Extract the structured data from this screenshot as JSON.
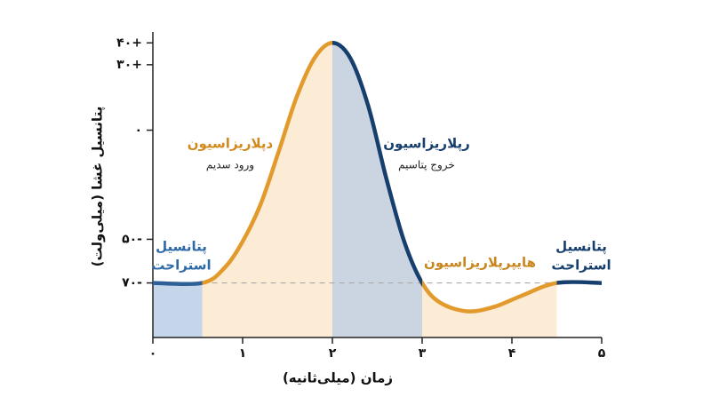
{
  "chart_data": {
    "type": "line",
    "x_label": "زمان (میلی‌ثانیه)",
    "y_label": "پتانسیل غشا (میلی‌ولت)",
    "xlim": [
      0,
      5
    ],
    "xticks": [
      {
        "value": 0,
        "label": "۰"
      },
      {
        "value": 1,
        "label": "۱"
      },
      {
        "value": 2,
        "label": "۲"
      },
      {
        "value": 3,
        "label": "۳"
      },
      {
        "value": 4,
        "label": "۴"
      },
      {
        "value": 5,
        "label": "۵"
      }
    ],
    "ylim": [
      -95,
      45
    ],
    "yticks": [
      {
        "value": 40,
        "label": "۴۰+"
      },
      {
        "value": 30,
        "label": "۳۰+"
      },
      {
        "value": 0,
        "label": "۰"
      },
      {
        "value": -50,
        "label": "۵۰-"
      },
      {
        "value": -70,
        "label": "۷۰-"
      }
    ],
    "baseline": -70,
    "series": [
      {
        "x": [
          0,
          0.55,
          0.8,
          1.0,
          1.2,
          1.4,
          1.6,
          1.8,
          2.0,
          2.2,
          2.4,
          2.6,
          2.8,
          3.0,
          3.2,
          3.5,
          3.8,
          4.1,
          4.5,
          5
        ],
        "values": [
          -70,
          -70,
          -63,
          -51,
          -34,
          -10,
          15,
          33,
          40,
          33,
          11,
          -22,
          -51,
          -70,
          -79,
          -83,
          -81,
          -76,
          -70,
          -70
        ]
      }
    ],
    "regions": [
      {
        "label": [
          "پتانسیل",
          "استراحت"
        ],
        "from": 0,
        "to": 0.55,
        "line_color": "#2e5f96",
        "fill_color": "#c5d5ea",
        "label_color": "#2e6aa8"
      },
      {
        "label": [
          "دپلاریزاسیون"
        ],
        "sublabel": "ورود سدیم",
        "from": 0.55,
        "to": 2,
        "line_color": "#e39a2d",
        "fill_color": "#fcecd6",
        "label_color": "#d08a1e"
      },
      {
        "label": [
          "رپلاریزاسیون"
        ],
        "sublabel": "خروج پتاسیم",
        "from": 2,
        "to": 3,
        "line_color": "#173f6e",
        "fill_color": "#cbd5e2",
        "label_color": "#173f6e"
      },
      {
        "label": [
          "هایپرپلاریزاسیون"
        ],
        "from": 3,
        "to": 4.5,
        "line_color": "#e39a2d",
        "fill_color": "#fcecd6",
        "label_color": "#c8861f"
      },
      {
        "label": [
          "پتانسیل",
          "استراحت"
        ],
        "from": 4.5,
        "to": 5,
        "line_color": "#173f6e",
        "label_color": "#173f6e"
      }
    ]
  }
}
